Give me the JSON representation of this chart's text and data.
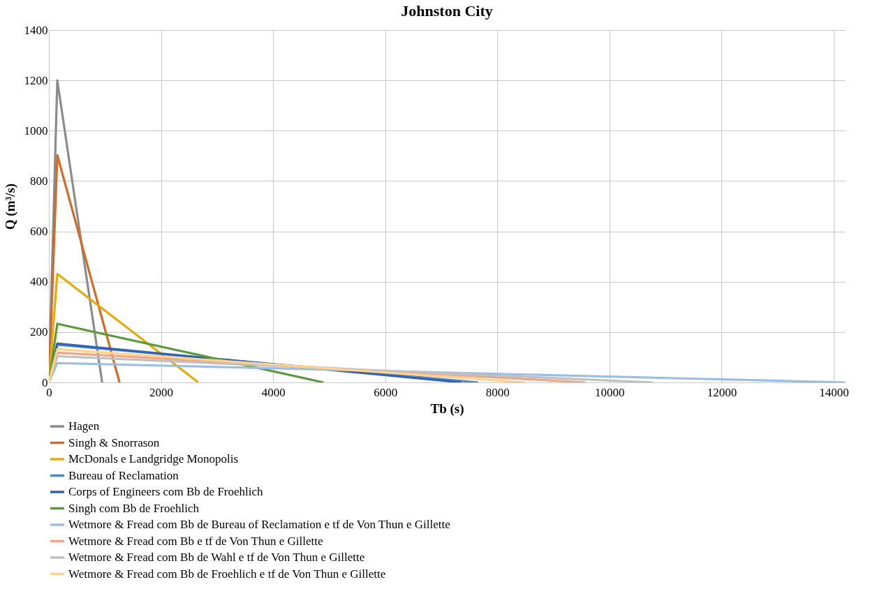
{
  "chart_data": {
    "type": "line",
    "title": "Johnston City",
    "xlabel": "Tb (s)",
    "ylabel": "Q (m³/s)",
    "xlim": [
      0,
      14200
    ],
    "xticks": [
      0,
      2000,
      4000,
      6000,
      8000,
      10000,
      12000,
      14000
    ],
    "ylim": [
      0,
      1400
    ],
    "yticks": [
      0,
      200,
      400,
      600,
      800,
      1000,
      1200,
      1400
    ],
    "grid": true,
    "legend": "bottom",
    "marker": "none",
    "line_style": "solid",
    "series": [
      {
        "name": "Hagen",
        "color": "#8c8c8c",
        "x": [
          0,
          150,
          950
        ],
        "values": [
          0,
          1200,
          0
        ]
      },
      {
        "name": "Singh & Snorrason",
        "color": "#d46a26",
        "x": [
          0,
          150,
          1260
        ],
        "values": [
          0,
          903,
          0
        ]
      },
      {
        "name": "McDonals e Landgridge Monopolis",
        "color": "#e3ac0b",
        "x": [
          0,
          150,
          2665
        ],
        "values": [
          0,
          431,
          0
        ]
      },
      {
        "name": "Bureau of Reclamation",
        "color": "#4a8ac9",
        "x": [
          0,
          150,
          7660
        ],
        "values": [
          0,
          150,
          0
        ]
      },
      {
        "name": "Corps of Engineers com Bb de Froehlich",
        "color": "#3461b0",
        "x": [
          0,
          150,
          7360
        ],
        "values": [
          0,
          154,
          0
        ]
      },
      {
        "name": "Singh com Bb de Froehlich",
        "color": "#5b9a3c",
        "x": [
          0,
          150,
          4900
        ],
        "values": [
          0,
          233,
          0
        ]
      },
      {
        "name": "Wetmore & Fread com Bb de Bureau of Reclamation e tf de Von Thun e Gillette",
        "color": "#99bde5",
        "x": [
          0,
          150,
          14200
        ],
        "values": [
          0,
          77,
          0
        ]
      },
      {
        "name": "Wetmore & Fread com Bb e tf de Von Thun e Gillette",
        "color": "#f0a58a",
        "x": [
          0,
          150,
          9570
        ],
        "values": [
          0,
          118,
          0
        ]
      },
      {
        "name": "Wetmore & Fread com Bb de Wahl e tf de Von Thun e Gillette",
        "color": "#c0c0c0",
        "x": [
          0,
          150,
          10770
        ],
        "values": [
          0,
          104,
          0
        ]
      },
      {
        "name": "Wetmore & Fread com Bb de Froehlich e tf de Von Thun e Gillette",
        "color": "#ffd28a",
        "x": [
          0,
          150,
          8500
        ],
        "values": [
          0,
          132,
          0
        ]
      }
    ]
  }
}
